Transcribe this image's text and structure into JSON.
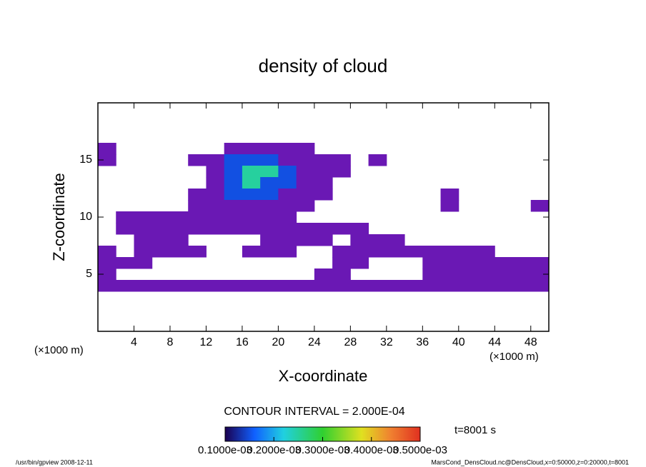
{
  "chart_data": {
    "type": "heatmap",
    "title": "density of cloud",
    "x_label": "X-coordinate",
    "y_label": "Z-coordinate",
    "x_unit": "(×1000 m)",
    "y_unit": "(×1000 m)",
    "x": [
      1,
      3,
      5,
      7,
      9,
      11,
      13,
      15,
      17,
      19,
      21,
      23,
      25,
      27,
      29,
      31,
      33,
      35,
      37,
      39,
      41,
      43,
      45,
      47,
      49
    ],
    "y": [
      16,
      15,
      14,
      13,
      12,
      11,
      10,
      9,
      8,
      7,
      6,
      5,
      4
    ],
    "z": [
      [
        3e-05,
        0,
        0,
        0,
        0,
        0,
        0,
        3e-05,
        3e-05,
        3e-05,
        3e-05,
        3e-05,
        0,
        0,
        0,
        0,
        0,
        0,
        0,
        0,
        0,
        0,
        0,
        0,
        0
      ],
      [
        3e-05,
        0,
        0,
        0,
        0,
        3e-05,
        8e-05,
        0.00015,
        0.00015,
        0.00015,
        8e-05,
        8e-05,
        3e-05,
        3e-05,
        0,
        3e-05,
        0,
        0,
        0,
        0,
        0,
        0,
        0,
        0,
        0
      ],
      [
        0,
        0,
        0,
        0,
        0,
        0,
        3e-05,
        0.00015,
        0.00025,
        0.00025,
        0.00015,
        8e-05,
        3e-05,
        3e-05,
        0,
        0,
        0,
        0,
        0,
        0,
        0,
        0,
        0,
        0,
        0
      ],
      [
        0,
        0,
        0,
        0,
        0,
        0,
        3e-05,
        0.00015,
        0.00025,
        0.00015,
        0.00015,
        8e-05,
        3e-05,
        0,
        0,
        0,
        0,
        0,
        0,
        0,
        0,
        0,
        0,
        0,
        0
      ],
      [
        0,
        0,
        0,
        0,
        0,
        3e-05,
        8e-05,
        0.00015,
        0.00015,
        0.00015,
        8e-05,
        3e-05,
        3e-05,
        0,
        0,
        0,
        0,
        0,
        0,
        3e-05,
        0,
        0,
        0,
        0,
        0
      ],
      [
        0,
        0,
        0,
        0,
        0,
        3e-05,
        8e-05,
        8e-05,
        8e-05,
        8e-05,
        3e-05,
        3e-05,
        0,
        0,
        0,
        0,
        0,
        0,
        0,
        3e-05,
        0,
        0,
        0,
        0,
        3e-05
      ],
      [
        0,
        3e-05,
        3e-05,
        3e-05,
        3e-05,
        3e-05,
        3e-05,
        3e-05,
        3e-05,
        3e-05,
        3e-05,
        0,
        0,
        0,
        0,
        0,
        0,
        0,
        0,
        0,
        0,
        0,
        0,
        0,
        0
      ],
      [
        0,
        3e-05,
        3e-05,
        3e-05,
        3e-05,
        3e-05,
        3e-05,
        3e-05,
        3e-05,
        3e-05,
        3e-05,
        3e-05,
        3e-05,
        3e-05,
        3e-05,
        0,
        0,
        0,
        0,
        0,
        0,
        0,
        0,
        0,
        0
      ],
      [
        0,
        0,
        3e-05,
        8e-05,
        3e-05,
        0,
        0,
        0,
        0,
        3e-05,
        3e-05,
        3e-05,
        3e-05,
        0,
        3e-05,
        3e-05,
        3e-05,
        0,
        0,
        0,
        0,
        0,
        0,
        0,
        0
      ],
      [
        3e-05,
        0,
        3e-05,
        3e-05,
        3e-05,
        3e-05,
        0,
        0,
        3e-05,
        3e-05,
        3e-05,
        0,
        0,
        3e-05,
        3e-05,
        3e-05,
        3e-05,
        3e-05,
        3e-05,
        3e-05,
        3e-05,
        3e-05,
        0,
        0,
        0
      ],
      [
        3e-05,
        3e-05,
        3e-05,
        0,
        0,
        0,
        0,
        0,
        0,
        0,
        0,
        0,
        0,
        8e-05,
        3e-05,
        0,
        0,
        0,
        3e-05,
        3e-05,
        3e-05,
        3e-05,
        3e-05,
        3e-05,
        3e-05
      ],
      [
        3e-05,
        0,
        0,
        0,
        0,
        0,
        0,
        0,
        0,
        0,
        0,
        0,
        3e-05,
        8e-05,
        0,
        0,
        0,
        0,
        3e-05,
        3e-05,
        3e-05,
        3e-05,
        3e-05,
        3e-05,
        3e-05
      ],
      [
        3e-05,
        3e-05,
        3e-05,
        3e-05,
        3e-05,
        3e-05,
        3e-05,
        3e-05,
        3e-05,
        3e-05,
        3e-05,
        3e-05,
        3e-05,
        3e-05,
        3e-05,
        3e-05,
        3e-05,
        3e-05,
        8e-05,
        3e-05,
        3e-05,
        3e-05,
        3e-05,
        3e-05,
        8e-05
      ]
    ],
    "xlim": [
      0,
      50
    ],
    "ylim": [
      0,
      20
    ],
    "xticks": [
      4,
      8,
      12,
      16,
      20,
      24,
      28,
      32,
      36,
      40,
      44,
      48
    ],
    "yticks": [
      5,
      10,
      15
    ],
    "contour_interval": "CONTOUR INTERVAL = 2.000E-04",
    "time_label": "t=8001 s",
    "colorbar": {
      "lim": [
        0.0001,
        0.0005
      ],
      "ticks": [
        {
          "value": 0.0001,
          "label": "0.1000e-03"
        },
        {
          "value": 0.0002,
          "label": "0.2000e-03"
        },
        {
          "value": 0.0003,
          "label": "0.3000e-03"
        },
        {
          "value": 0.0004,
          "label": "0.4000e-03"
        },
        {
          "value": 0.0005,
          "label": "0.5000e-03"
        }
      ]
    },
    "footer_left": "/usr/bin/gpview   2008-12-11",
    "footer_right": "MarsCond_DensCloud.nc@DensCloud,x=0:50000,z=0:20000,t=8001"
  }
}
